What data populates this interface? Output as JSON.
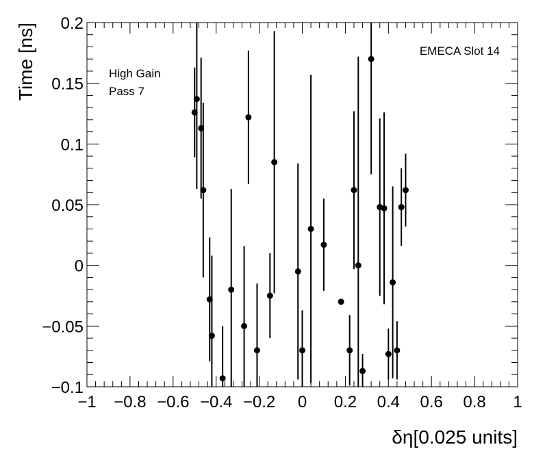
{
  "chart_data": {
    "type": "scatter",
    "xlabel": "δη[0.025 units]",
    "ylabel": "Time [ns]",
    "xlim": [
      -1,
      1
    ],
    "ylim": [
      -0.1,
      0.2
    ],
    "x_ticks": [
      -1,
      -0.8,
      -0.6,
      -0.4,
      -0.2,
      0,
      0.2,
      0.4,
      0.6,
      0.8,
      1
    ],
    "x_tick_labels": [
      "−1",
      "−0.8",
      "−0.6",
      "−0.4",
      "−0.2",
      "0",
      "0.2",
      "0.4",
      "0.6",
      "0.8",
      "1"
    ],
    "y_ticks": [
      -0.1,
      -0.05,
      0,
      0.05,
      0.1,
      0.15,
      0.2
    ],
    "y_tick_labels": [
      "−0.1",
      "−0.05",
      "0",
      "0.05",
      "0.1",
      "0.15",
      "0.2"
    ],
    "grid": false,
    "annotations": [
      "High Gain",
      "Pass 7",
      "EMECA Slot 14"
    ],
    "points": [
      {
        "x": -0.5,
        "y": 0.126,
        "err": 0.037
      },
      {
        "x": -0.49,
        "y": 0.137,
        "err": 0.074
      },
      {
        "x": -0.47,
        "y": 0.113,
        "err": 0.058
      },
      {
        "x": -0.46,
        "y": 0.062,
        "err": 0.072
      },
      {
        "x": -0.43,
        "y": -0.028,
        "err": 0.051
      },
      {
        "x": -0.42,
        "y": -0.058,
        "err": 0.066
      },
      {
        "x": -0.37,
        "y": -0.093,
        "err": 0.043
      },
      {
        "x": -0.33,
        "y": -0.02,
        "err": 0.083
      },
      {
        "x": -0.27,
        "y": -0.05,
        "err": 0.066
      },
      {
        "x": -0.25,
        "y": 0.122,
        "err": 0.055
      },
      {
        "x": -0.21,
        "y": -0.07,
        "err": 0.055
      },
      {
        "x": -0.15,
        "y": -0.025,
        "err": 0.035
      },
      {
        "x": -0.13,
        "y": 0.085,
        "err": 0.108
      },
      {
        "x": -0.02,
        "y": -0.005,
        "err": 0.089
      },
      {
        "x": 0.0,
        "y": -0.07,
        "err": 0.033
      },
      {
        "x": 0.04,
        "y": 0.03,
        "err": 0.127
      },
      {
        "x": 0.1,
        "y": 0.017,
        "err": 0.038
      },
      {
        "x": 0.18,
        "y": -0.03,
        "err": 0.0
      },
      {
        "x": 0.22,
        "y": -0.07,
        "err": 0.029
      },
      {
        "x": 0.24,
        "y": 0.062,
        "err": 0.065
      },
      {
        "x": 0.26,
        "y": 0.0,
        "err": 0.172
      },
      {
        "x": 0.28,
        "y": -0.087,
        "err": 0.014
      },
      {
        "x": 0.32,
        "y": 0.17,
        "err": 0.095
      },
      {
        "x": 0.36,
        "y": 0.048,
        "err": 0.073
      },
      {
        "x": 0.38,
        "y": 0.047,
        "err": 0.079
      },
      {
        "x": 0.4,
        "y": -0.073,
        "err": 0.021
      },
      {
        "x": 0.42,
        "y": -0.014,
        "err": 0.079
      },
      {
        "x": 0.44,
        "y": -0.07,
        "err": 0.024
      },
      {
        "x": 0.46,
        "y": 0.048,
        "err": 0.032
      },
      {
        "x": 0.48,
        "y": 0.062,
        "err": 0.03
      }
    ]
  }
}
